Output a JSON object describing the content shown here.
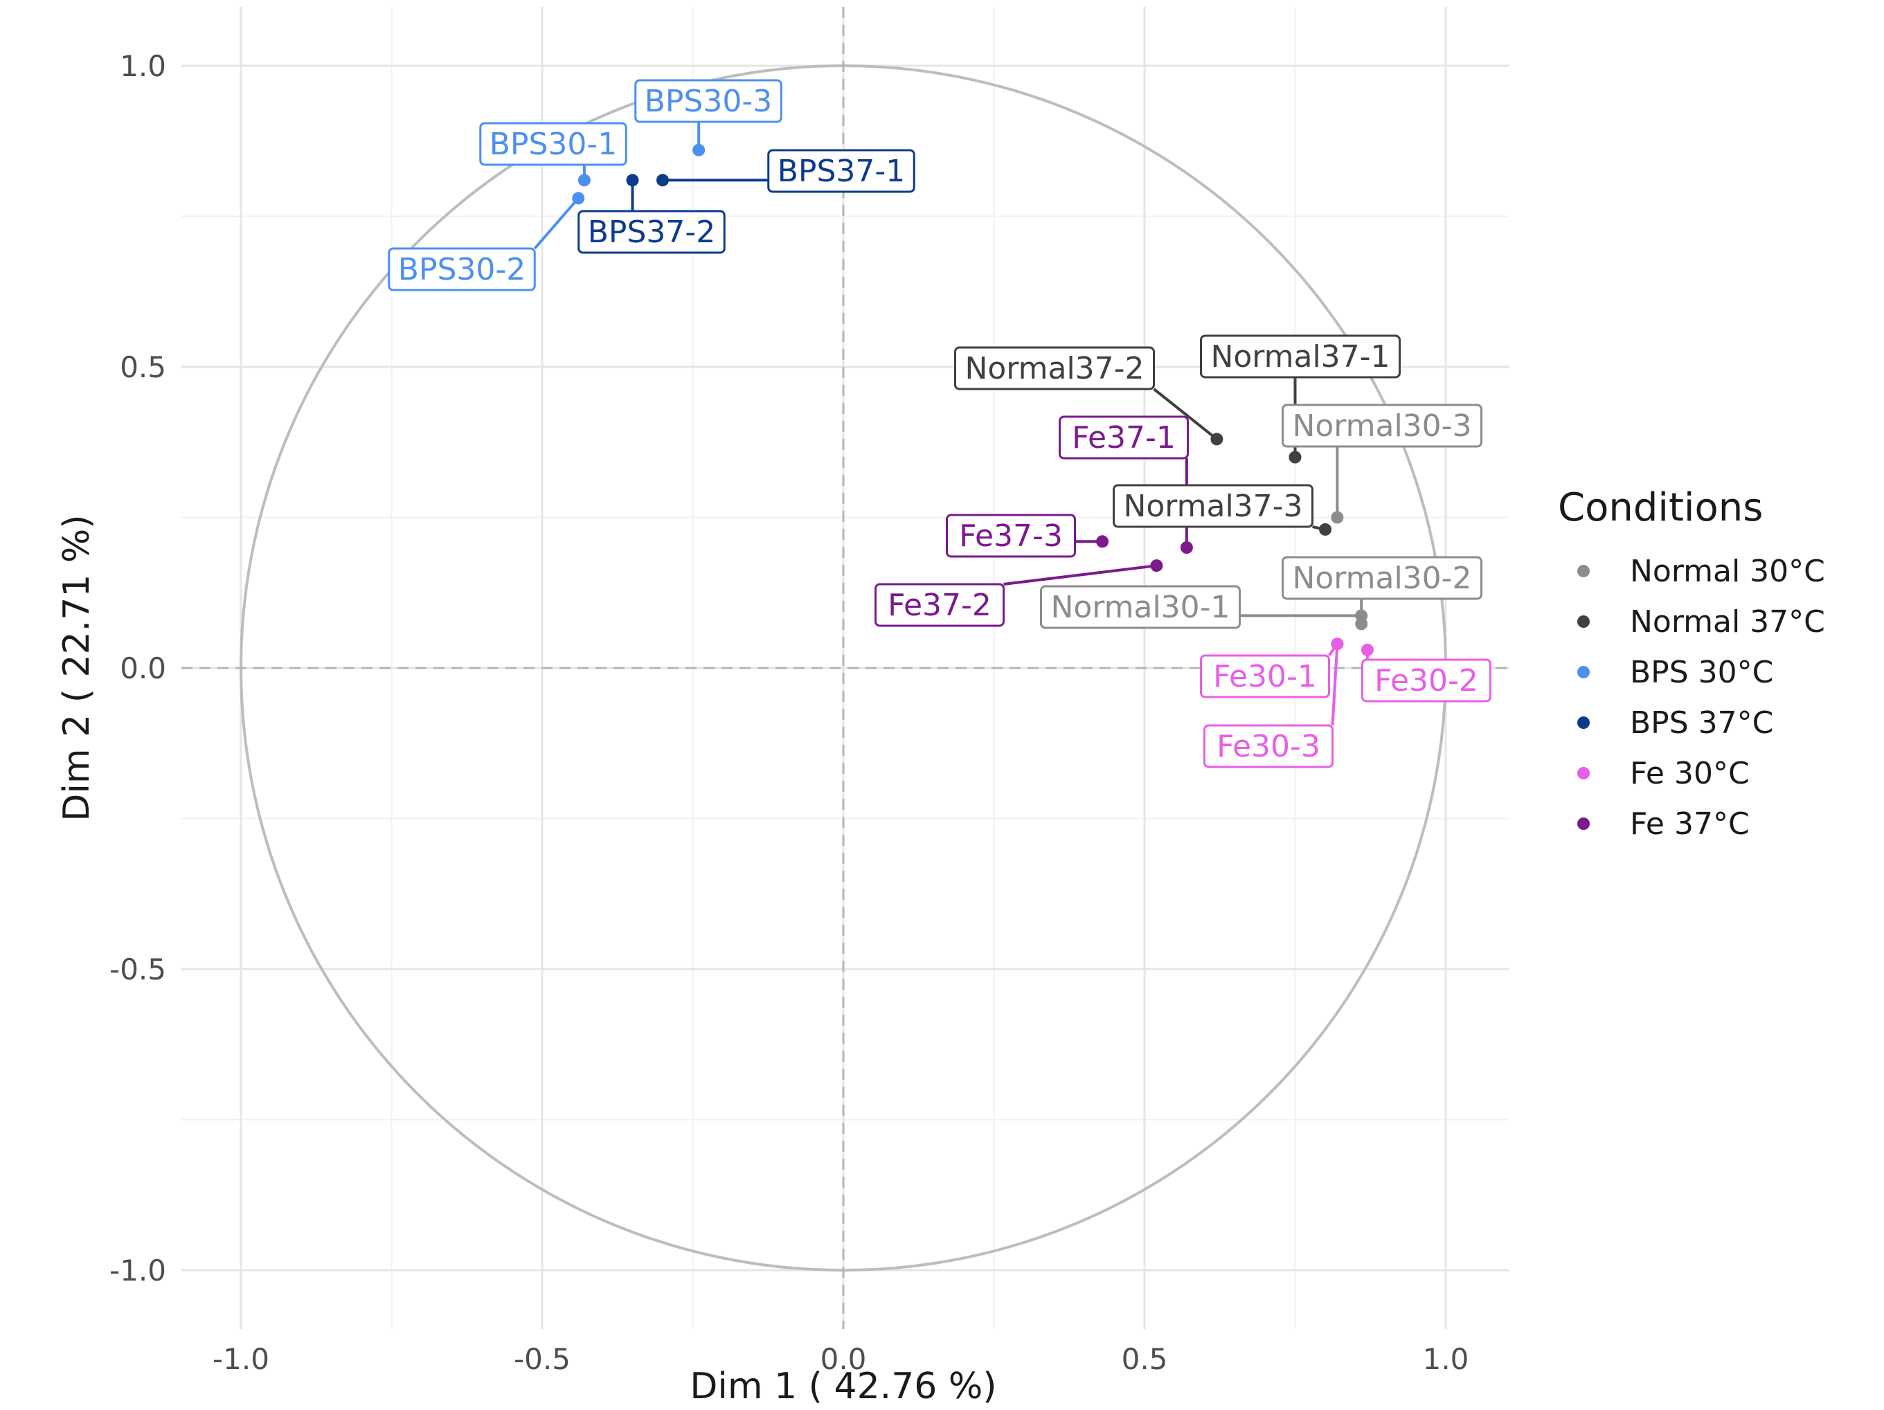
{
  "chart_data": {
    "type": "scatter",
    "xlabel": "Dim 1 ( 42.76 %)",
    "ylabel": "Dim 2 ( 22.71 %)",
    "xlim": [
      -1.1,
      1.1
    ],
    "ylim": [
      -1.1,
      1.1
    ],
    "x_ticks": [
      -1.0,
      -0.5,
      0.0,
      0.5,
      1.0
    ],
    "y_ticks": [
      -1.0,
      -0.5,
      0.0,
      0.5,
      1.0
    ],
    "x_tick_labels": [
      "-1.0",
      "-0.5",
      "0.0",
      "0.5",
      "1.0"
    ],
    "y_tick_labels": [
      "-1.0",
      "-0.5",
      "0.0",
      "0.5",
      "1.0"
    ],
    "grid": true,
    "reference_lines": {
      "x": 0,
      "y": 0,
      "style": "dashed"
    },
    "correlation_circle": {
      "radius": 1.0
    },
    "legend": {
      "title": "Conditions",
      "placement": "right"
    },
    "series": [
      {
        "name": "Normal 30°C",
        "color": "#8c8c8c",
        "points": [
          {
            "label": "Normal30-1",
            "x": 0.86,
            "y": 0.08
          },
          {
            "label": "Normal30-2",
            "x": 0.86,
            "y": 0.08
          },
          {
            "label": "Normal30-3",
            "x": 0.82,
            "y": 0.25
          }
        ]
      },
      {
        "name": "Normal 37°C",
        "color": "#404040",
        "points": [
          {
            "label": "Normal37-1",
            "x": 0.75,
            "y": 0.35
          },
          {
            "label": "Normal37-2",
            "x": 0.62,
            "y": 0.38
          },
          {
            "label": "Normal37-3",
            "x": 0.8,
            "y": 0.23
          }
        ]
      },
      {
        "name": "BPS 30°C",
        "color": "#4d8ff0",
        "points": [
          {
            "label": "BPS30-1",
            "x": -0.43,
            "y": 0.81
          },
          {
            "label": "BPS30-2",
            "x": -0.44,
            "y": 0.78
          },
          {
            "label": "BPS30-3",
            "x": -0.24,
            "y": 0.86
          }
        ]
      },
      {
        "name": "BPS 37°C",
        "color": "#0d3b8c",
        "points": [
          {
            "label": "BPS37-1",
            "x": -0.3,
            "y": 0.81
          },
          {
            "label": "BPS37-2",
            "x": -0.35,
            "y": 0.81
          }
        ]
      },
      {
        "name": "Fe 30°C",
        "color": "#e85ee8",
        "points": [
          {
            "label": "Fe30-1",
            "x": 0.82,
            "y": 0.04
          },
          {
            "label": "Fe30-2",
            "x": 0.87,
            "y": 0.03
          },
          {
            "label": "Fe30-3",
            "x": 0.82,
            "y": 0.04
          }
        ]
      },
      {
        "name": "Fe 37°C",
        "color": "#7a1a8c",
        "points": [
          {
            "label": "Fe37-1",
            "x": 0.57,
            "y": 0.2
          },
          {
            "label": "Fe37-2",
            "x": 0.52,
            "y": 0.17
          },
          {
            "label": "Fe37-3",
            "x": 0.43,
            "y": 0.21
          }
        ]
      }
    ]
  }
}
